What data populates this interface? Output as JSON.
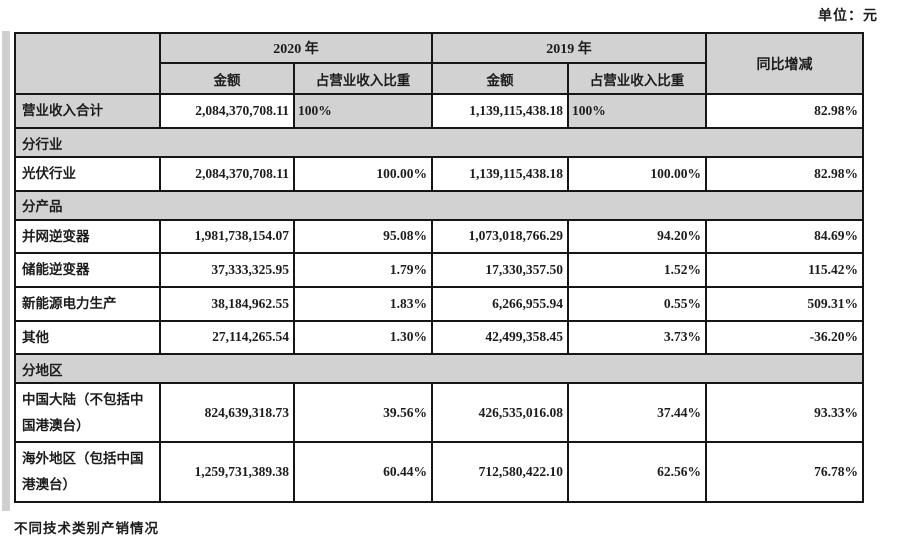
{
  "unit_label": "单位：元",
  "footer_note": "不同技术类别产销情况",
  "colors": {
    "header_bg": "#d2d2d2",
    "border": "#161616",
    "text": "#1c1c1c",
    "left_strip": "#cfcfcf"
  },
  "table": {
    "col_headers": {
      "year_2020": "2020 年",
      "year_2019": "2019 年",
      "amount": "金额",
      "share": "占营业收入比重",
      "yoy": "同比增减"
    },
    "rows": [
      {
        "type": "data",
        "variant": "total",
        "label": "营业收入合计",
        "amount_2020": "2,084,370,708.11",
        "share_2020": "100%",
        "amount_2019": "1,139,115,438.18",
        "share_2019": "100%",
        "yoy": "82.98%"
      },
      {
        "type": "section",
        "label": "分行业"
      },
      {
        "type": "data",
        "label": "光伏行业",
        "amount_2020": "2,084,370,708.11",
        "share_2020": "100.00%",
        "amount_2019": "1,139,115,438.18",
        "share_2019": "100.00%",
        "yoy": "82.98%"
      },
      {
        "type": "section",
        "label": "分产品"
      },
      {
        "type": "data",
        "label": "并网逆变器",
        "amount_2020": "1,981,738,154.07",
        "share_2020": "95.08%",
        "amount_2019": "1,073,018,766.29",
        "share_2019": "94.20%",
        "yoy": "84.69%"
      },
      {
        "type": "data",
        "label": "储能逆变器",
        "amount_2020": "37,333,325.95",
        "share_2020": "1.79%",
        "amount_2019": "17,330,357.50",
        "share_2019": "1.52%",
        "yoy": "115.42%"
      },
      {
        "type": "data",
        "label": "新能源电力生产",
        "amount_2020": "38,184,962.55",
        "share_2020": "1.83%",
        "amount_2019": "6,266,955.94",
        "share_2019": "0.55%",
        "yoy": "509.31%"
      },
      {
        "type": "data",
        "label": "其他",
        "amount_2020": "27,114,265.54",
        "share_2020": "1.30%",
        "amount_2019": "42,499,358.45",
        "share_2019": "3.73%",
        "yoy": "-36.20%"
      },
      {
        "type": "section",
        "label": "分地区"
      },
      {
        "type": "data",
        "label": "中国大陆（不包括中国港澳台）",
        "amount_2020": "824,639,318.73",
        "share_2020": "39.56%",
        "amount_2019": "426,535,016.08",
        "share_2019": "37.44%",
        "yoy": "93.33%"
      },
      {
        "type": "data",
        "label": "海外地区（包括中国港澳台）",
        "amount_2020": "1,259,731,389.38",
        "share_2020": "60.44%",
        "amount_2019": "712,580,422.10",
        "share_2019": "62.56%",
        "yoy": "76.78%"
      }
    ]
  }
}
